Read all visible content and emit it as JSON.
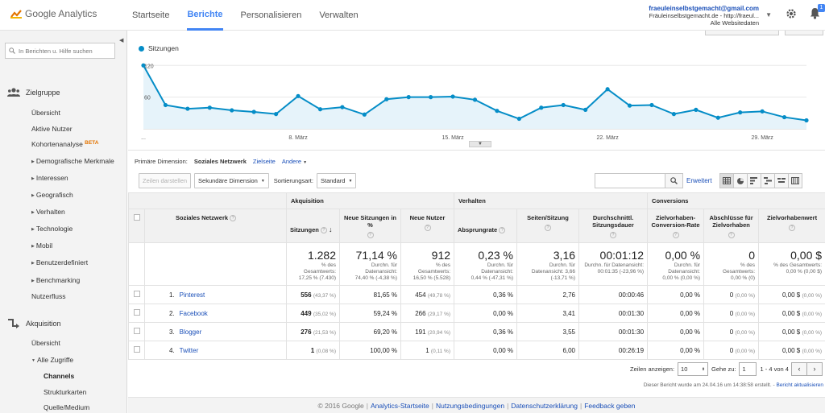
{
  "app": {
    "title": "Google Analytics"
  },
  "nav": {
    "tabs": [
      "Startseite",
      "Berichte",
      "Personalisieren",
      "Verwalten"
    ],
    "active": "Berichte"
  },
  "account": {
    "email": "fraeuleinselbstgemacht@gmail.com",
    "property": "Fräuleinselbstgemacht.de - http://fraeul...",
    "view": "Alle Websitedaten"
  },
  "notifications": {
    "count": "1"
  },
  "sidebar": {
    "search_placeholder": "In Berichten u. Hilfe suchen",
    "audience": {
      "label": "Zielgruppe",
      "items": [
        "Übersicht",
        "Aktive Nutzer",
        "Kohortenanalyse",
        "Demografische Merkmale",
        "Interessen",
        "Geografisch",
        "Verhalten",
        "Technologie",
        "Mobil",
        "Benutzerdefiniert",
        "Benchmarking",
        "Nutzerfluss"
      ],
      "beta": "BETA"
    },
    "acquisition": {
      "label": "Akquisition",
      "items": [
        "Übersicht",
        "Alle Zugriffe",
        "Channels",
        "Strukturkarten",
        "Quelle/Medium"
      ]
    }
  },
  "chart_data": {
    "type": "line",
    "series": [
      {
        "name": "Sitzungen",
        "values": [
          120,
          45,
          38,
          40,
          35,
          32,
          28,
          62,
          37,
          41,
          27,
          56,
          60,
          60,
          61,
          55,
          34,
          19,
          40,
          45,
          36,
          75,
          44,
          45,
          28,
          36,
          21,
          31,
          33,
          22,
          16
        ]
      }
    ],
    "x_labels": [
      "...",
      "8. März",
      "15. März",
      "22. März",
      "29. März"
    ],
    "y_ticks": [
      "120",
      "60"
    ],
    "ylim": [
      0,
      128
    ]
  },
  "report": {
    "primary_dimension_label": "Primäre Dimension:",
    "primary_dimension": "Soziales Netzwerk",
    "dim_link": "Zielseite",
    "other": "Andere",
    "show_rows_btn": "Zeilen darstellen",
    "secondary_dim": "Sekundäre Dimension",
    "sort_label": "Sortierungsart:",
    "sort_value": "Standard",
    "advanced": "Erweitert"
  },
  "table": {
    "groups": {
      "acq": "Akquisition",
      "beh": "Verhalten",
      "conv": "Conversions"
    },
    "headers": [
      "Soziales Netzwerk",
      "Sitzungen",
      "Neue Sitzungen in %",
      "Neue Nutzer",
      "Absprungrate",
      "Seiten/Sitzung",
      "Durchschnittl. Sitzungsdauer",
      "Zielvorhaben-Conversion-Rate",
      "Abschlüsse für Zielvorhaben",
      "Zielvorhabenwert"
    ],
    "totals": [
      {
        "value": "1.282",
        "sub1": "% des Gesamtwerts:",
        "sub2": "17,25 % (7.430)"
      },
      {
        "value": "71,14 %",
        "sub1": "Durchn. für Datenansicht:",
        "sub2": "74,40 % (-4,38 %)"
      },
      {
        "value": "912",
        "sub1": "% des Gesamtwerts:",
        "sub2": "16,50 % (5.528)"
      },
      {
        "value": "0,23 %",
        "sub1": "Durchn. für Datenansicht:",
        "sub2": "0,44 % (-47,31 %)"
      },
      {
        "value": "3,16",
        "sub1": "Durchn. für Datenansicht: 3,66",
        "sub2": "(-13,71 %)"
      },
      {
        "value": "00:01:12",
        "sub1": "Durchn. für Datenansicht:",
        "sub2": "00:01:35 (-23,96 %)"
      },
      {
        "value": "0,00 %",
        "sub1": "Durchn. für Datenansicht:",
        "sub2": "0,00 % (0,00 %)"
      },
      {
        "value": "0",
        "sub1": "% des Gesamtwerts:",
        "sub2": "0,00 % (0)"
      },
      {
        "value": "0,00 $",
        "sub1": "% des Gesamtwerts:",
        "sub2": "0,00 % (0,00 $)"
      }
    ],
    "rows": [
      {
        "idx": "1.",
        "name": "Pinterest",
        "sessions": "556",
        "sessions_pct": "(43,37 %)",
        "new_sess": "81,65 %",
        "new_users": "454",
        "new_users_pct": "(49,78 %)",
        "bounce": "0,36 %",
        "pages": "2,76",
        "duration": "00:00:46",
        "conv_rate": "0,00 %",
        "goals": "0",
        "goals_pct": "(0,00 %)",
        "value": "0,00 $",
        "value_pct": "(0,00 %)"
      },
      {
        "idx": "2.",
        "name": "Facebook",
        "sessions": "449",
        "sessions_pct": "(35,02 %)",
        "new_sess": "59,24 %",
        "new_users": "266",
        "new_users_pct": "(29,17 %)",
        "bounce": "0,00 %",
        "pages": "3,41",
        "duration": "00:01:30",
        "conv_rate": "0,00 %",
        "goals": "0",
        "goals_pct": "(0,00 %)",
        "value": "0,00 $",
        "value_pct": "(0,00 %)"
      },
      {
        "idx": "3.",
        "name": "Blogger",
        "sessions": "276",
        "sessions_pct": "(21,53 %)",
        "new_sess": "69,20 %",
        "new_users": "191",
        "new_users_pct": "(20,94 %)",
        "bounce": "0,36 %",
        "pages": "3,55",
        "duration": "00:01:30",
        "conv_rate": "0,00 %",
        "goals": "0",
        "goals_pct": "(0,00 %)",
        "value": "0,00 $",
        "value_pct": "(0,00 %)"
      },
      {
        "idx": "4.",
        "name": "Twitter",
        "sessions": "1",
        "sessions_pct": "(0,08 %)",
        "new_sess": "100,00 %",
        "new_users": "1",
        "new_users_pct": "(0,11 %)",
        "bounce": "0,00 %",
        "pages": "6,00",
        "duration": "00:26:19",
        "conv_rate": "0,00 %",
        "goals": "0",
        "goals_pct": "(0,00 %)",
        "value": "0,00 $",
        "value_pct": "(0,00 %)"
      }
    ]
  },
  "pager": {
    "show_label": "Zeilen anzeigen:",
    "rows": "10",
    "goto_label": "Gehe zu:",
    "goto": "1",
    "range": "1 - 4 von 4",
    "prev": "‹",
    "next": "›"
  },
  "created": {
    "text": "Dieser Bericht wurde am 24.04.16 um 14:38:58 erstellt. -",
    "link": "Bericht aktualisieren"
  },
  "footer": {
    "copyright": "© 2016 Google",
    "links": [
      "Analytics-Startseite",
      "Nutzungsbedingungen",
      "Datenschutzerklärung",
      "Feedback geben"
    ]
  },
  "colors": {
    "accent": "#4285f4",
    "line": "#058dc7",
    "fill": "#e6f3fa",
    "link": "#1a4fb8"
  }
}
